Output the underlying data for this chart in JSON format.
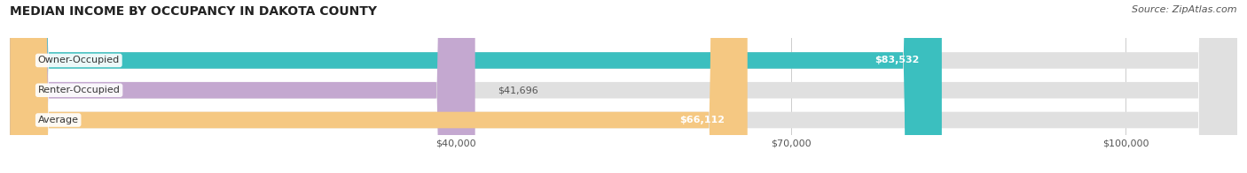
{
  "title": "MEDIAN INCOME BY OCCUPANCY IN DAKOTA COUNTY",
  "source": "Source: ZipAtlas.com",
  "categories": [
    "Owner-Occupied",
    "Renter-Occupied",
    "Average"
  ],
  "values": [
    83532,
    41696,
    66112
  ],
  "labels": [
    "$83,532",
    "$41,696",
    "$66,112"
  ],
  "bar_colors": [
    "#3bbfbf",
    "#c4a8d0",
    "#f5c882"
  ],
  "xmax": 110000,
  "xticks": [
    40000,
    70000,
    100000
  ],
  "xticklabels": [
    "$40,000",
    "$70,000",
    "$100,000"
  ],
  "label_inside_threshold": 60000,
  "figsize": [
    14.06,
    1.96
  ],
  "dpi": 100,
  "title_fontsize": 10,
  "source_fontsize": 8,
  "bar_label_fontsize": 8,
  "category_fontsize": 8,
  "tick_fontsize": 8
}
